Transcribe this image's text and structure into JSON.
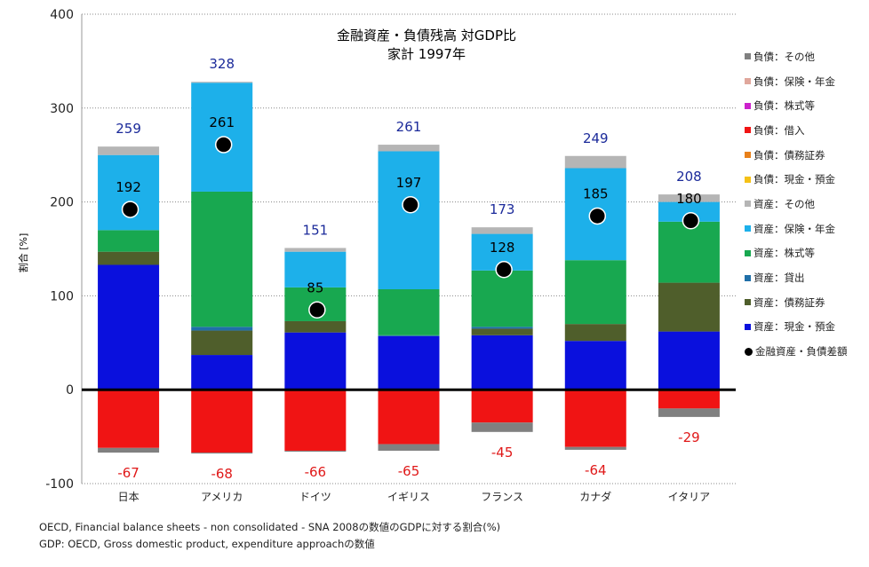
{
  "chart_data": {
    "type": "bar",
    "title": "金融資産・負債残高 対GDP比",
    "subtitle": "家計 1997年",
    "ylabel": "割合 [%]",
    "xlabel": "",
    "ylim": [
      -100,
      400
    ],
    "yticks": [
      400,
      300,
      200,
      100,
      0,
      -100
    ],
    "grid": true,
    "legend_position": "right",
    "categories": [
      "日本",
      "アメリカ",
      "ドイツ",
      "イギリス",
      "フランス",
      "カナダ",
      "イタリア"
    ],
    "asset_series": [
      {
        "name": "資産：現金・預金",
        "color": "#0a10dd",
        "values": [
          133,
          37,
          61,
          57,
          58,
          52,
          62
        ]
      },
      {
        "name": "資産：債務証券",
        "color": "#4f5e2b",
        "values": [
          14,
          26,
          12,
          0,
          7,
          18,
          52
        ]
      },
      {
        "name": "資産：貸出",
        "color": "#1f6fa8",
        "values": [
          0,
          4,
          0,
          1,
          2,
          0,
          0
        ]
      },
      {
        "name": "資産：株式等",
        "color": "#18a850",
        "values": [
          23,
          144,
          36,
          49,
          60,
          68,
          65
        ]
      },
      {
        "name": "資産：保険・年金",
        "color": "#1db0ea",
        "values": [
          80,
          116,
          38,
          147,
          39,
          98,
          21
        ]
      },
      {
        "name": "資産：その他",
        "color": "#b5b5b5",
        "values": [
          9,
          1,
          4,
          7,
          7,
          13,
          8
        ]
      }
    ],
    "liability_series": [
      {
        "name": "負債：現金・預金",
        "color": "#f5c116",
        "values": [
          0,
          0,
          0,
          0,
          0,
          0,
          0
        ]
      },
      {
        "name": "負債：債務証券",
        "color": "#e8801a",
        "values": [
          0,
          0,
          0,
          0,
          0,
          0,
          0
        ]
      },
      {
        "name": "負債：借入",
        "color": "#f01414",
        "values": [
          -62,
          -67,
          -65,
          -58,
          -35,
          -61,
          -20
        ]
      },
      {
        "name": "負債：株式等",
        "color": "#cc22cc",
        "values": [
          0,
          0,
          0,
          0,
          0,
          0,
          0
        ]
      },
      {
        "name": "負債：保険・年金",
        "color": "#e0a79c",
        "values": [
          0,
          0,
          0,
          0,
          0,
          0,
          0
        ]
      },
      {
        "name": "負債：その他",
        "color": "#808080",
        "values": [
          -5,
          -1,
          -1,
          -7,
          -10,
          -3,
          -9
        ]
      }
    ],
    "total_assets_labels": [
      "259",
      "328",
      "151",
      "261",
      "173",
      "249",
      "208"
    ],
    "total_liabilities_labels": [
      "-67",
      "-68",
      "-66",
      "-65",
      "-45",
      "-64",
      "-29"
    ],
    "net_series": {
      "name": "金融資産・負債差額",
      "values": [
        192,
        261,
        85,
        197,
        128,
        185,
        180
      ],
      "labels": [
        "192",
        "261",
        "85",
        "197",
        "128",
        "185",
        "180"
      ]
    },
    "legend": [
      {
        "label": "負債：その他",
        "color": "#808080"
      },
      {
        "label": "負債：保険・年金",
        "color": "#e0a79c"
      },
      {
        "label": "負債：株式等",
        "color": "#cc22cc"
      },
      {
        "label": "負債：借入",
        "color": "#f01414"
      },
      {
        "label": "負債：債務証券",
        "color": "#e8801a"
      },
      {
        "label": "負債：現金・預金",
        "color": "#f5c116"
      },
      {
        "label": "資産：その他",
        "color": "#b5b5b5"
      },
      {
        "label": "資産：保険・年金",
        "color": "#1db0ea"
      },
      {
        "label": "資産：株式等",
        "color": "#18a850"
      },
      {
        "label": "資産：貸出",
        "color": "#1f6fa8"
      },
      {
        "label": "資産：債務証券",
        "color": "#4f5e2b"
      },
      {
        "label": "資産：現金・預金",
        "color": "#0a10dd"
      },
      {
        "label": "金融資産・負債差額",
        "dot": true
      }
    ]
  },
  "footer": {
    "line1": "OECD, Financial balance sheets - non consolidated - SNA 2008の数値のGDPに対する割合(%)",
    "line2": "GDP: OECD, Gross domestic product, expenditure approachの数値"
  },
  "colors": {
    "asset_label": "#1b2a9a",
    "liability_label": "#e01818",
    "axis": "#000000",
    "grid": "#888888"
  }
}
